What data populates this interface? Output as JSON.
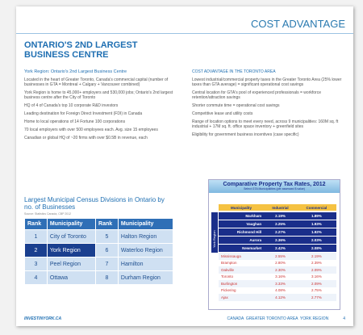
{
  "header": {
    "section": "COST ADVANTAGE",
    "title": "ONTARIO'S 2ND LARGEST BUSINESS CENTRE"
  },
  "left": {
    "heading": "York Region: Ontario's 2nd Largest Business Centre",
    "paragraphs": [
      "Located in the heart of Greater Toronto, Canada's commercial capital (number of businesses in GTA = Montreal + Calgary + Vancouver combined)",
      "York Region is home to 45,000+ employers and 530,000 jobs; Ontario's 2nd largest business centre after the City of Toronto",
      "HQ of 4 of Canada's top 10 corporate R&D investors",
      "Leading destination for Foreign Direct Investment (FDI) in Canada",
      "Home to local operations of 14 Fortune 100 corporations",
      "70 local employers with over 500 employees each. Avg. size 15 employees",
      "Canadian or global HQ of ~20 firms with over $0.5B in revenue, each"
    ],
    "table": {
      "title": "Largest Municipal Census Divisions in Ontario by no. of Businesses",
      "source": "Source: Statistics Canada, CBP 2012",
      "columns": [
        "Rank",
        "Municipality",
        "Rank",
        "Municipality"
      ],
      "rows": [
        [
          "1",
          "City of Toronto",
          "5",
          "Halton Region"
        ],
        [
          "2",
          "York Region",
          "6",
          "Waterloo Region"
        ],
        [
          "3",
          "Peel Region",
          "7",
          "Hamilton"
        ],
        [
          "4",
          "Ottawa",
          "8",
          "Durham Region"
        ]
      ]
    }
  },
  "right": {
    "heading": "COST ADVANTAGE IN THE TORONTO AREA",
    "paragraphs": [
      "Lowest industrial/commercial property taxes in the Greater Toronto Area (25% lower taxes than GTA average) = significant operational cost savings",
      "Central location for GTA's pool of experienced professionals = workforce retention/attraction savings",
      "Shorter commute time = operational cost savings",
      "Competitive lease and utility costs",
      "Range of location options to meet every need, across 9 municipalities: 160M sq. ft industrial + 17M sq. ft. office space inventory + greenfield sites",
      "Eligibility for government business incentives (case specific)"
    ],
    "table": {
      "title": "Comparative Property Tax Rates, 2012",
      "subtitle": "Select GTA Municipalities (per assessed $ value)",
      "group": "York Region",
      "columns": [
        "Municipality",
        "Industrial",
        "Commercial"
      ],
      "york_rows": [
        [
          "Markham",
          "2.19%",
          "1.89%"
        ],
        [
          "Vaughan",
          "2.25%",
          "1.93%"
        ],
        [
          "Richmond Hill",
          "2.27%",
          "1.92%"
        ],
        [
          "Aurora",
          "2.36%",
          "2.03%"
        ],
        [
          "Newmarket",
          "2.42%",
          "2.08%"
        ]
      ],
      "other_rows": [
        [
          "Mississauga",
          "2.55%",
          "2.19%"
        ],
        [
          "Brampton",
          "2.80%",
          "2.39%"
        ],
        [
          "Oakville",
          "2.30%",
          "2.09%"
        ],
        [
          "Toronto",
          "3.16%",
          "3.16%"
        ],
        [
          "Burlington",
          "3.33%",
          "2.09%"
        ],
        [
          "Pickering",
          "4.08%",
          "2.75%"
        ],
        [
          "Ajax",
          "4.12%",
          "2.77%"
        ]
      ]
    }
  },
  "footer": {
    "site": "INVESTINYORK.CA",
    "regions": "CANADA  GREATER TORONTO AREA  YORK REGION",
    "page": "4"
  }
}
